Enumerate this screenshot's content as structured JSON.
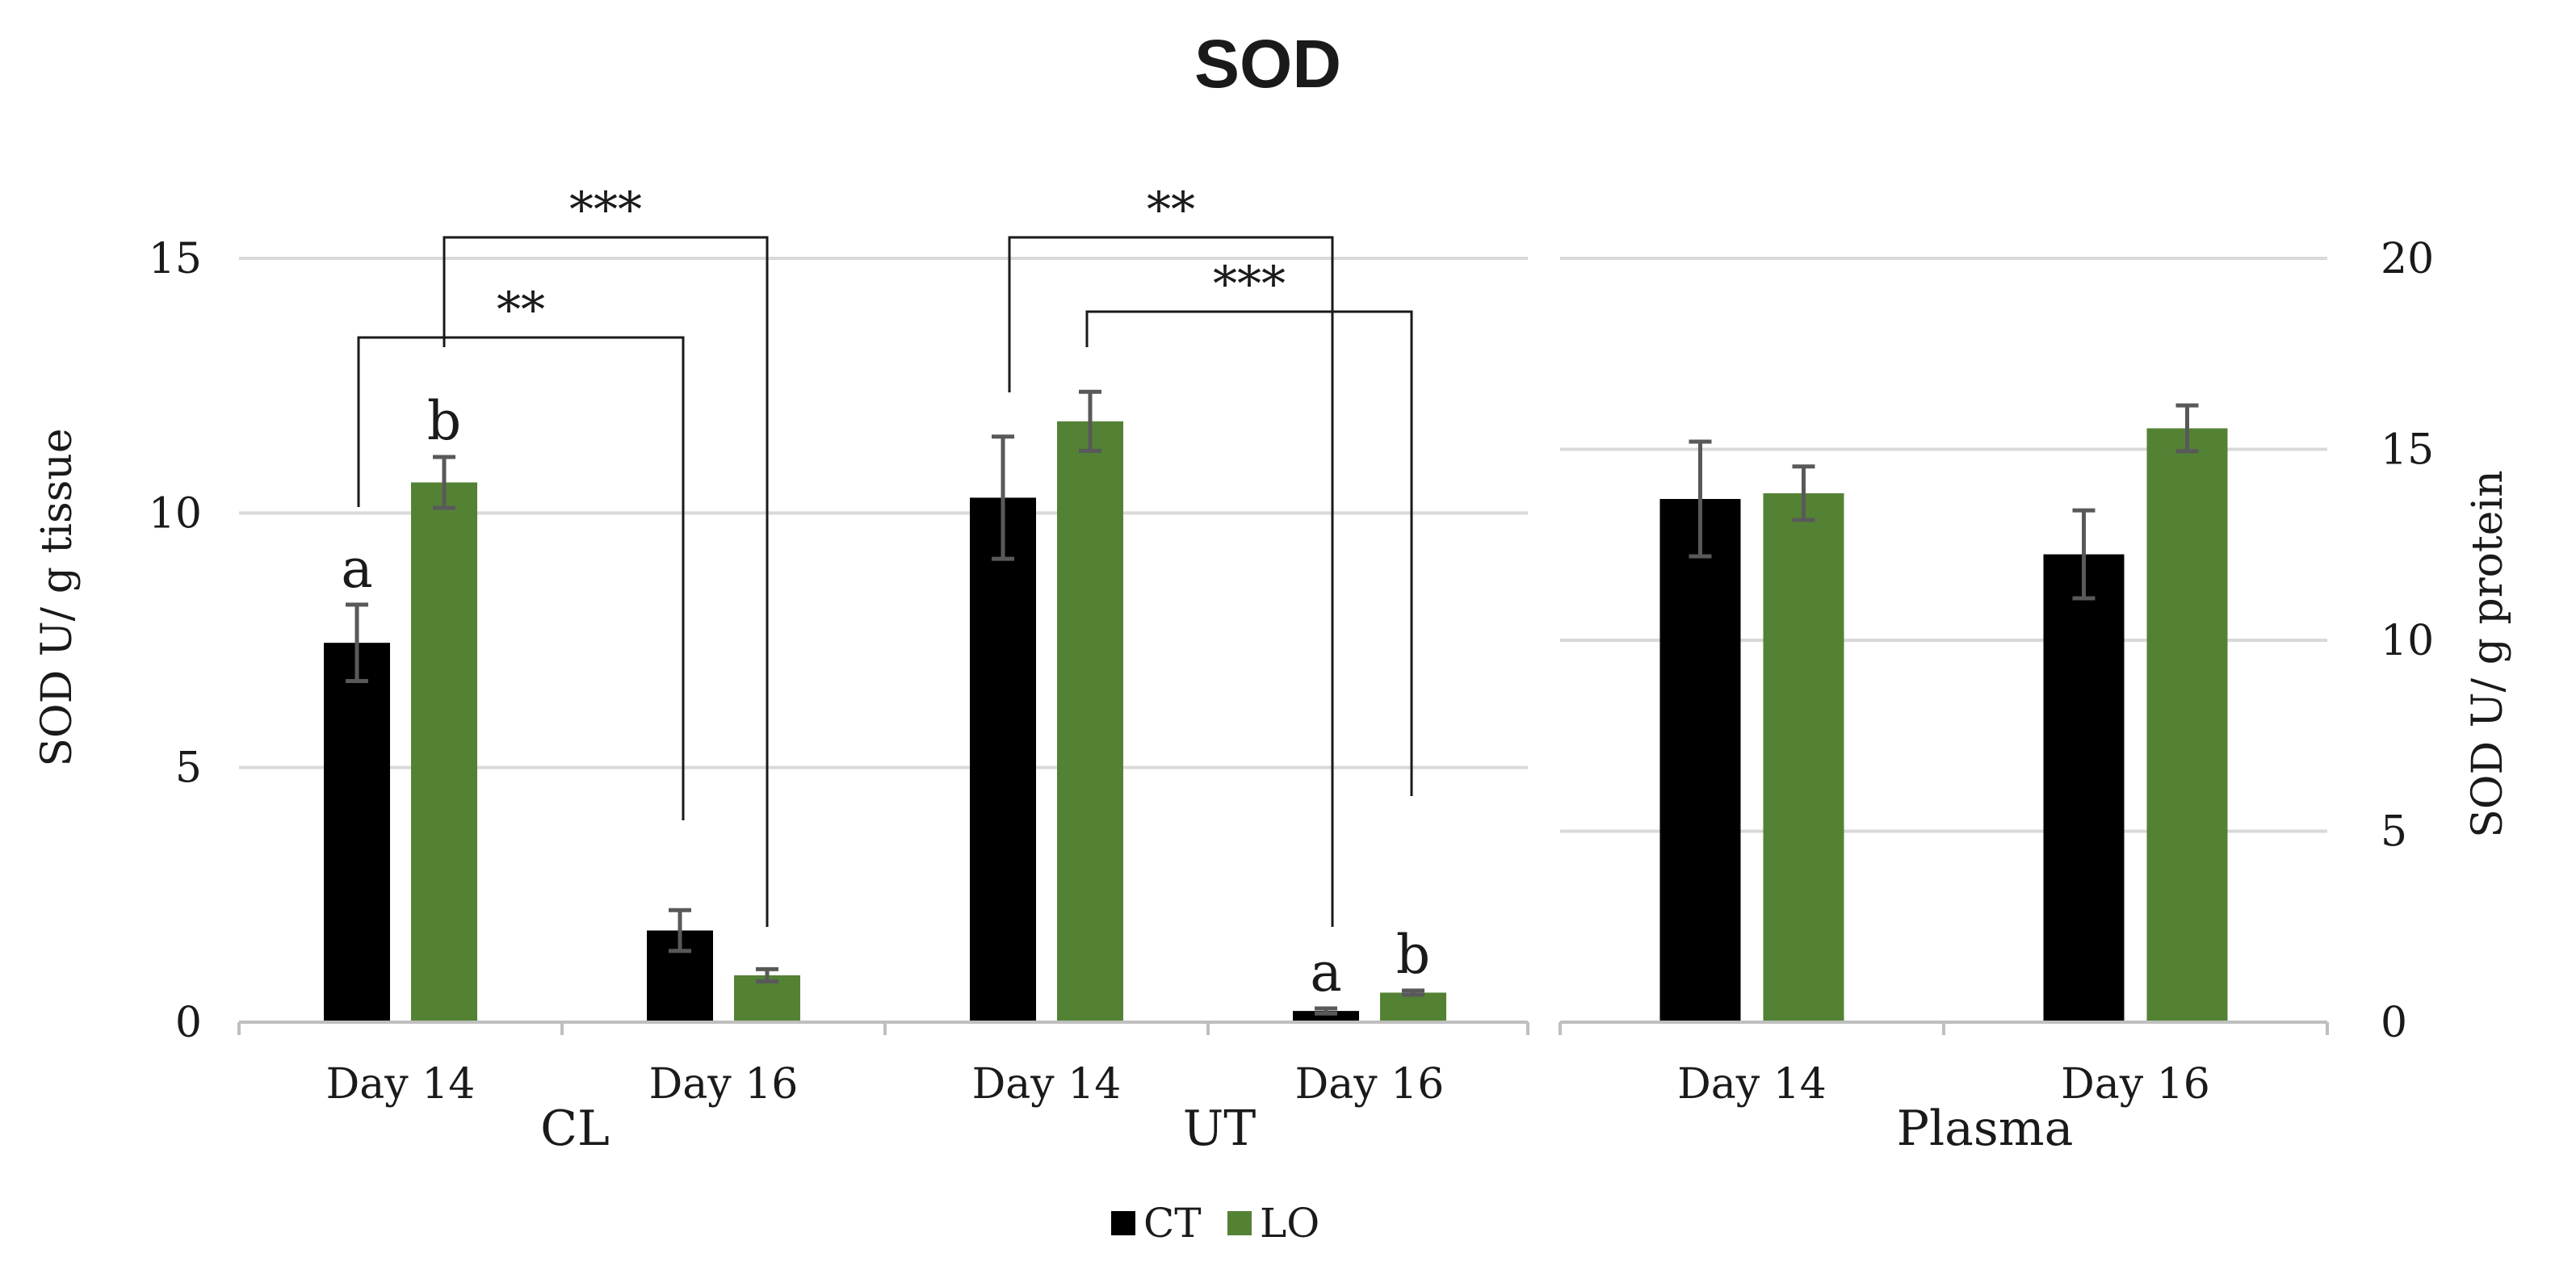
{
  "chart_data": {
    "type": "bar",
    "title": "SOD",
    "left_axis": {
      "label": "SOD U/ g tissue",
      "ylim": [
        0,
        15
      ],
      "ticks": [
        "0",
        "5",
        "10",
        "15"
      ]
    },
    "right_axis": {
      "label": "SOD U/ g protein",
      "ylim": [
        0,
        20
      ],
      "ticks": [
        "0",
        "5",
        "10",
        "15",
        "20"
      ]
    },
    "legend": {
      "position": "bottom",
      "entries": [
        {
          "name": "CT",
          "color": "#000000"
        },
        {
          "name": "LO",
          "color": "#548235"
        }
      ]
    },
    "panels": [
      {
        "name": "CL",
        "axis": "left",
        "categories": [
          "Day 14",
          "Day 16"
        ],
        "series": [
          {
            "name": "CT",
            "values": [
              7.45,
              1.8
            ],
            "errors": [
              0.75,
              0.4
            ]
          },
          {
            "name": "LO",
            "values": [
              10.6,
              0.92
            ],
            "errors": [
              0.5,
              0.12
            ]
          }
        ],
        "letters": [
          {
            "text": "a",
            "category": 0,
            "series": 0
          },
          {
            "text": "b",
            "category": 0,
            "series": 1
          }
        ],
        "significance": [
          {
            "text": "**",
            "from": [
              0,
              0
            ],
            "to": [
              1,
              0
            ]
          },
          {
            "text": "***",
            "from": [
              0,
              1
            ],
            "to": [
              1,
              1
            ]
          }
        ]
      },
      {
        "name": "UT",
        "axis": "left",
        "categories": [
          "Day 14",
          "Day 16"
        ],
        "series": [
          {
            "name": "CT",
            "values": [
              10.3,
              0.22
            ],
            "errors": [
              1.2,
              0.05
            ]
          },
          {
            "name": "LO",
            "values": [
              11.8,
              0.58
            ],
            "errors": [
              0.58,
              0.04
            ]
          }
        ],
        "letters": [
          {
            "text": "a",
            "category": 1,
            "series": 0
          },
          {
            "text": "b",
            "category": 1,
            "series": 1
          }
        ],
        "significance": [
          {
            "text": "**",
            "from": [
              0,
              0
            ],
            "to": [
              1,
              0
            ]
          },
          {
            "text": "***",
            "from": [
              0,
              1
            ],
            "to": [
              1,
              1
            ]
          }
        ]
      },
      {
        "name": "Plasma",
        "axis": "right",
        "categories": [
          "Day 14",
          "Day 16"
        ],
        "series": [
          {
            "name": "CT",
            "values": [
              13.7,
              12.25
            ],
            "errors": [
              1.5,
              1.15
            ]
          },
          {
            "name": "LO",
            "values": [
              13.85,
              15.55
            ],
            "errors": [
              0.7,
              0.6
            ]
          }
        ],
        "letters": [],
        "significance": []
      }
    ]
  }
}
